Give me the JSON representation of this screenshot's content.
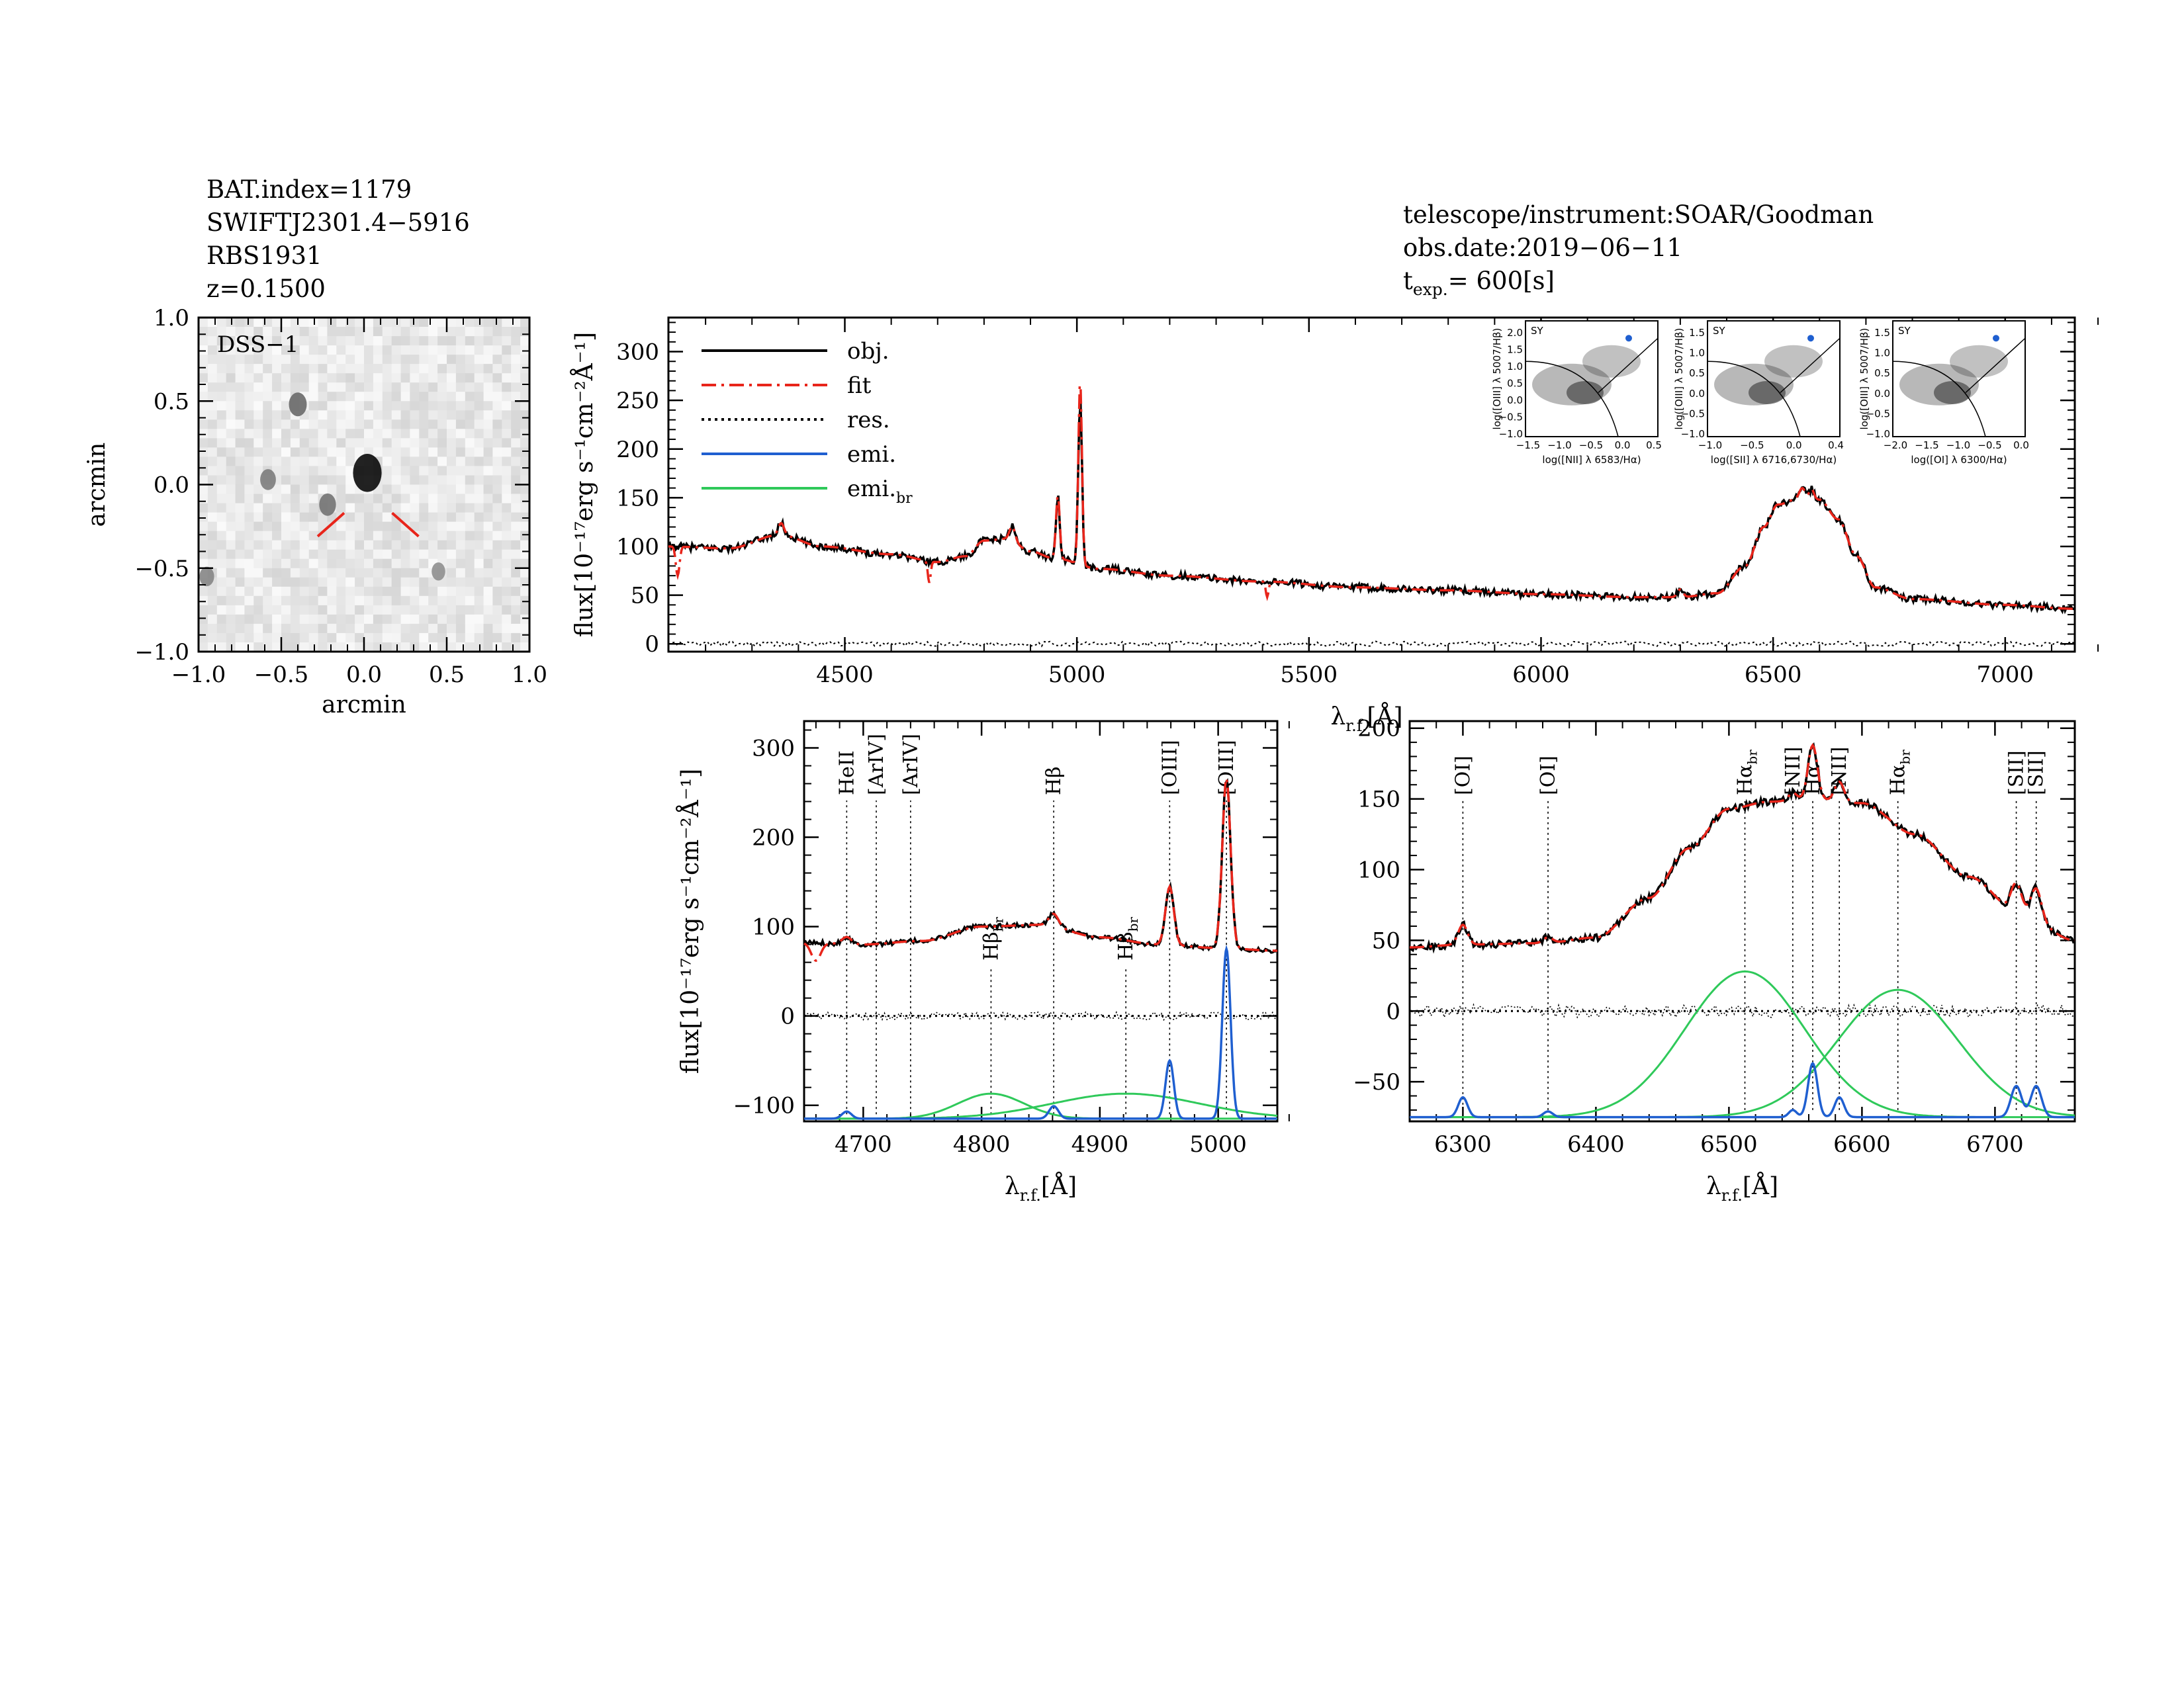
{
  "meta": {
    "left": [
      "BAT.index=1179",
      "SWIFTJ2301.4−5916",
      "RBS1931",
      "z=0.1500"
    ],
    "right": [
      "telescope/instrument:SOAR/Goodman",
      "obs.date:2019−06−11"
    ],
    "texp_prefix": "t",
    "texp_sub": "exp.",
    "texp_value": "= 600[s]"
  },
  "colors": {
    "obj": "#000000",
    "fit": "#e8251b",
    "res": "#000000",
    "emi": "#1f5fd0",
    "emi_br": "#2fc95a"
  },
  "chart_data": [
    {
      "id": "dss",
      "type": "heatmap",
      "panel_label": "DSS−1",
      "xlabel": "arcmin",
      "ylabel": "arcmin",
      "xlim": [
        -1.0,
        1.0
      ],
      "ylim": [
        -1.0,
        1.0
      ],
      "xticks": [
        "−1.0",
        "−0.5",
        "0.0",
        "0.5",
        "1.0"
      ],
      "yticks": [
        "−1.0",
        "−0.5",
        "0.0",
        "0.5",
        "1.0"
      ],
      "sources": [
        {
          "x": 0.02,
          "y": 0.07,
          "level": 1.0
        },
        {
          "x": -0.4,
          "y": 0.48,
          "level": 0.5
        },
        {
          "x": -0.58,
          "y": 0.03,
          "level": 0.4
        },
        {
          "x": -0.22,
          "y": -0.12,
          "level": 0.45
        },
        {
          "x": 0.45,
          "y": -0.52,
          "level": 0.3
        },
        {
          "x": -0.95,
          "y": -0.55,
          "level": 0.35
        }
      ]
    },
    {
      "id": "full",
      "type": "line",
      "ylabel": "flux[10⁻¹⁷erg s⁻¹cm⁻²Å⁻¹]",
      "xlabel_main": "λ",
      "xlabel_sub": "r.f.",
      "xlabel_tail": "[Å]",
      "xlim": [
        4120,
        7150
      ],
      "ylim": [
        -8,
        335
      ],
      "xticks": [
        4500,
        5000,
        5500,
        6000,
        6500,
        7000
      ],
      "yticks": [
        0,
        50,
        100,
        150,
        200,
        250,
        300
      ],
      "legend": [
        "obj.",
        "fit",
        "res.",
        "emi.",
        "emi."
      ],
      "legend_br_sub": "br",
      "continuum": [
        [
          4120,
          100
        ],
        [
          4250,
          98
        ],
        [
          4360,
          112
        ],
        [
          4450,
          100
        ],
        [
          4600,
          92
        ],
        [
          4700,
          84
        ],
        [
          4760,
          90
        ],
        [
          4800,
          106
        ],
        [
          4850,
          108
        ],
        [
          4900,
          95
        ],
        [
          4950,
          88
        ],
        [
          5050,
          77
        ],
        [
          5200,
          70
        ],
        [
          5400,
          64
        ],
        [
          5600,
          58
        ],
        [
          5800,
          55
        ],
        [
          6000,
          51
        ],
        [
          6200,
          48
        ],
        [
          6300,
          48
        ],
        [
          6380,
          52
        ],
        [
          6440,
          80
        ],
        [
          6480,
          120
        ],
        [
          6510,
          143
        ],
        [
          6560,
          150
        ],
        [
          6600,
          148
        ],
        [
          6640,
          128
        ],
        [
          6680,
          90
        ],
        [
          6720,
          58
        ],
        [
          6800,
          46
        ],
        [
          7000,
          40
        ],
        [
          7150,
          36
        ]
      ],
      "lines": [
        [
          4363,
          12,
          6
        ],
        [
          4861,
          14,
          6
        ],
        [
          4959,
          65,
          4
        ],
        [
          5007,
          170,
          4
        ],
        [
          6300,
          8,
          6
        ],
        [
          6563,
          10,
          6
        ],
        [
          6583,
          10,
          5
        ]
      ],
      "fit_dips": [
        [
          4140,
          -30,
          4
        ],
        [
          4682,
          -22,
          3
        ],
        [
          5410,
          -16,
          3
        ]
      ]
    },
    {
      "id": "hb",
      "type": "line",
      "ylabel": "flux[10⁻¹⁷erg s⁻¹cm⁻²Å⁻¹]",
      "xlabel_main": "λ",
      "xlabel_sub": "r.f.",
      "xlabel_tail": "[Å]",
      "xlim": [
        4650,
        5050
      ],
      "ylim": [
        -118,
        330
      ],
      "xticks": [
        4700,
        4800,
        4900,
        5000
      ],
      "yticks": [
        -100,
        0,
        100,
        200,
        300
      ],
      "line_marks": [
        {
          "x": 4686,
          "label": "HeII",
          "color": "#000000",
          "pos": "top"
        },
        {
          "x": 4711,
          "label": "[ArIV]",
          "color": "#e8251b",
          "pos": "top"
        },
        {
          "x": 4740,
          "label": "[ArIV]",
          "color": "#e8251b",
          "pos": "top"
        },
        {
          "x": 4861,
          "label": "Hβ",
          "color": "#000000",
          "pos": "top"
        },
        {
          "x": 4959,
          "label": "[OIII]",
          "color": "#000000",
          "pos": "top"
        },
        {
          "x": 5007,
          "label": "[OIII]",
          "color": "#000000",
          "pos": "top"
        },
        {
          "x": 4808,
          "label": "Hβ",
          "sub": "br",
          "color": "#000000",
          "pos": "mid"
        },
        {
          "x": 4922,
          "label": "Hβ",
          "sub": "br",
          "color": "#000000",
          "pos": "mid"
        }
      ],
      "base_level": -115,
      "continuum": [
        [
          4650,
          82
        ],
        [
          4700,
          80
        ],
        [
          4750,
          84
        ],
        [
          4800,
          100
        ],
        [
          4850,
          102
        ],
        [
          4900,
          88
        ],
        [
          4950,
          80
        ],
        [
          5000,
          76
        ],
        [
          5050,
          73
        ]
      ],
      "narrow": [
        [
          4686,
          8,
          4
        ],
        [
          4861,
          14,
          4
        ],
        [
          4959,
          65,
          3.5
        ],
        [
          5007,
          190,
          3.5
        ]
      ],
      "broad": [
        [
          4808,
          28,
          28
        ],
        [
          4922,
          28,
          62
        ]
      ],
      "fit_dips": [
        [
          4660,
          -20,
          4
        ]
      ]
    },
    {
      "id": "ha",
      "type": "line",
      "ylabel": "",
      "xlabel_main": "λ",
      "xlabel_sub": "r.f.",
      "xlabel_tail": "[Å]",
      "xlim": [
        6260,
        6760
      ],
      "ylim": [
        -78,
        205
      ],
      "xticks": [
        6300,
        6400,
        6500,
        6600,
        6700
      ],
      "yticks": [
        -50,
        0,
        50,
        100,
        150,
        200
      ],
      "line_marks": [
        {
          "x": 6300,
          "label": "[OI]",
          "color": "#000000",
          "pos": "top"
        },
        {
          "x": 6364,
          "label": "[OI]",
          "color": "#000000",
          "pos": "top"
        },
        {
          "x": 6548,
          "label": "[NII]",
          "color": "#000000",
          "pos": "top"
        },
        {
          "x": 6563,
          "label": "Hα",
          "color": "#000000",
          "pos": "top"
        },
        {
          "x": 6583,
          "label": "[NII]",
          "color": "#000000",
          "pos": "top"
        },
        {
          "x": 6716,
          "label": "[SII]",
          "color": "#000000",
          "pos": "top"
        },
        {
          "x": 6731,
          "label": "[SII]",
          "color": "#000000",
          "pos": "top"
        },
        {
          "x": 6512,
          "label": "Hα",
          "sub": "br",
          "color": "#000000",
          "pos": "top"
        },
        {
          "x": 6627,
          "label": "Hα",
          "sub": "br",
          "color": "#000000",
          "pos": "top"
        }
      ],
      "base_level": -75,
      "continuum": [
        [
          6260,
          45
        ],
        [
          6300,
          47
        ],
        [
          6360,
          48
        ],
        [
          6400,
          52
        ],
        [
          6440,
          80
        ],
        [
          6470,
          115
        ],
        [
          6500,
          143
        ],
        [
          6530,
          148
        ],
        [
          6560,
          150
        ],
        [
          6600,
          147
        ],
        [
          6640,
          125
        ],
        [
          6680,
          95
        ],
        [
          6720,
          68
        ],
        [
          6760,
          50
        ]
      ],
      "narrow": [
        [
          6300,
          14,
          3.5
        ],
        [
          6364,
          4,
          3.5
        ],
        [
          6548,
          5,
          3
        ],
        [
          6563,
          38,
          3.5
        ],
        [
          6583,
          14,
          3.5
        ],
        [
          6716,
          22,
          4
        ],
        [
          6731,
          22,
          4
        ]
      ],
      "broad": [
        [
          6512,
          103,
          45
        ],
        [
          6627,
          90,
          45
        ]
      ],
      "fit_dips": []
    }
  ],
  "bpt": [
    {
      "xlabel": "log([NII] λ 6583/Hα)",
      "ylabel": "log([OIII] λ 5007/Hβ)",
      "xticks": [
        "−1.5",
        "−1.0",
        "−0.5",
        "0.0",
        "0.5"
      ],
      "yticks": [
        "2.0",
        "1.5",
        "1.0",
        "0.5",
        "0.0",
        "−0.5",
        "−1.0"
      ],
      "class": "SY"
    },
    {
      "xlabel": "log([SII] λ 6716,6730/Hα)",
      "ylabel": "log([OIII] λ 5007/Hβ)",
      "xticks": [
        "−1.0",
        "−0.5",
        "0.0",
        "0.4"
      ],
      "yticks": [
        "1.5",
        "1.0",
        "0.5",
        "0.0",
        "−0.5",
        "−1.0"
      ],
      "class": "SY"
    },
    {
      "xlabel": "log([OI] λ 6300/Hα)",
      "ylabel": "log([OIII] λ 5007/Hβ)",
      "xticks": [
        "−2.0",
        "−1.5",
        "−1.0",
        "−0.5",
        "0.0"
      ],
      "yticks": [
        "1.5",
        "1.0",
        "0.5",
        "0.0",
        "−0.5",
        "−1.0"
      ],
      "class": "SY"
    }
  ]
}
